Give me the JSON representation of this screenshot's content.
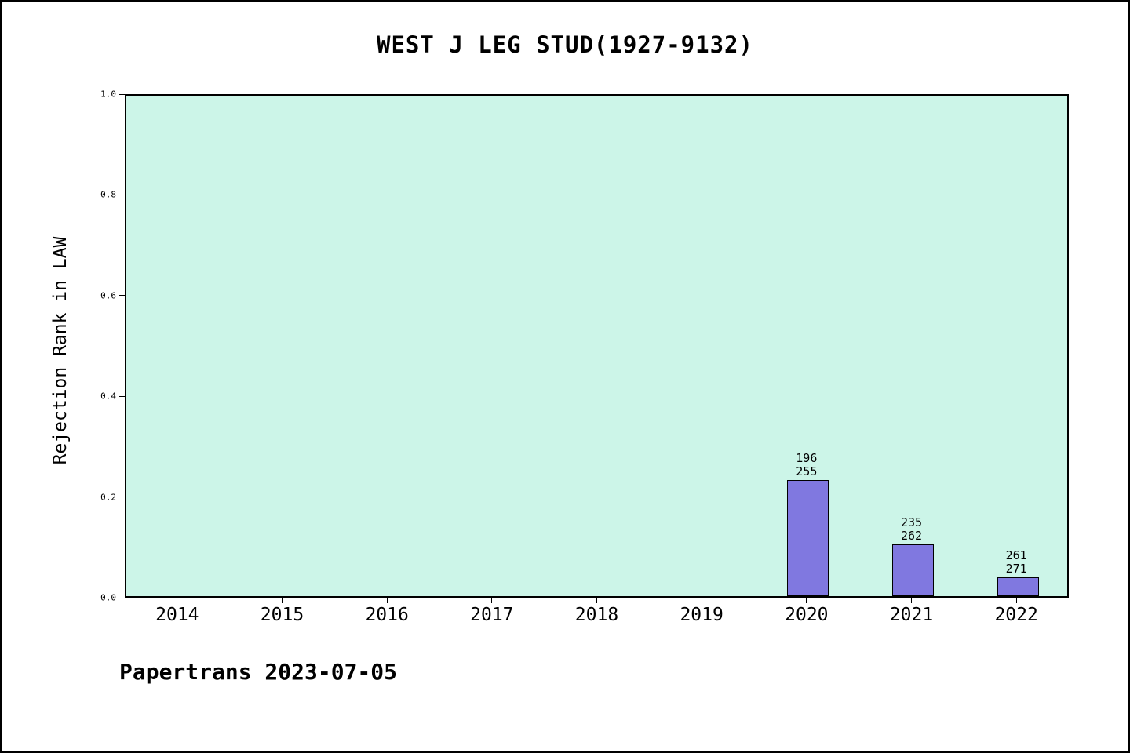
{
  "chart_data": {
    "type": "bar",
    "title": "WEST J LEG STUD(1927-9132)",
    "ylabel": "Rejection Rank in LAW",
    "xlabel": "",
    "categories": [
      "2014",
      "2015",
      "2016",
      "2017",
      "2018",
      "2019",
      "2020",
      "2021",
      "2022"
    ],
    "values": [
      null,
      null,
      null,
      null,
      null,
      null,
      0.231,
      0.103,
      0.037
    ],
    "bar_labels": [
      null,
      null,
      null,
      null,
      null,
      null,
      [
        "196",
        "255"
      ],
      [
        "235",
        "262"
      ],
      [
        "261",
        "271"
      ]
    ],
    "ylim": [
      0.0,
      1.0
    ],
    "yticks": [
      "0.0",
      "0.2",
      "0.4",
      "0.6",
      "0.8",
      "1.0"
    ],
    "grid": false,
    "legend": "none",
    "colors": {
      "bar_fill": "#8078e0",
      "bar_border": "#000000",
      "plot_background": "#ccf5e8",
      "page_background": "#ffffff",
      "text": "#000000"
    }
  },
  "footer": {
    "text": "Papertrans 2023-07-05"
  }
}
